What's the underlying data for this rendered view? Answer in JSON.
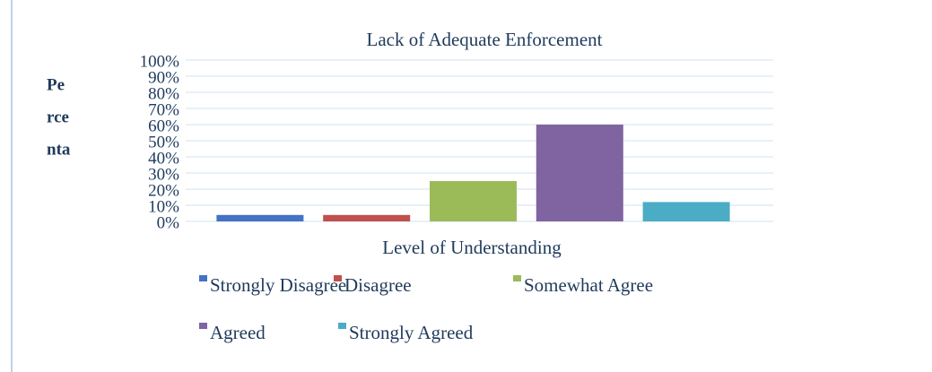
{
  "chart_data": {
    "type": "bar",
    "title": "Lack of Adequate Enforcement",
    "xlabel": "Level of Understanding",
    "ylabel_lines": [
      "Pe",
      "rce",
      "nta"
    ],
    "categories": [
      null
    ],
    "series": [
      {
        "name": "Strongly Disagree",
        "color": "#4472c4",
        "values": [
          4
        ]
      },
      {
        "name": "Disagree",
        "color": "#c0504d",
        "values": [
          4
        ]
      },
      {
        "name": "Somewhat Agree",
        "color": "#9bbb59",
        "values": [
          25
        ]
      },
      {
        "name": "Agreed",
        "color": "#8064a2",
        "values": [
          60
        ]
      },
      {
        "name": "Strongly Agreed",
        "color": "#4bacc6",
        "values": [
          12
        ]
      }
    ],
    "ylim": [
      0,
      100
    ],
    "yticks": [
      {
        "value": 0,
        "label": "0%"
      },
      {
        "value": 10,
        "label": "10%"
      },
      {
        "value": 20,
        "label": "20%"
      },
      {
        "value": 30,
        "label": "30%"
      },
      {
        "value": 40,
        "label": "40%"
      },
      {
        "value": 50,
        "label": "50%"
      },
      {
        "value": 60,
        "label": "60%"
      },
      {
        "value": 70,
        "label": "70%"
      },
      {
        "value": 80,
        "label": "80%"
      },
      {
        "value": 90,
        "label": "90%"
      },
      {
        "value": 100,
        "label": "100%"
      }
    ],
    "grid": true
  }
}
